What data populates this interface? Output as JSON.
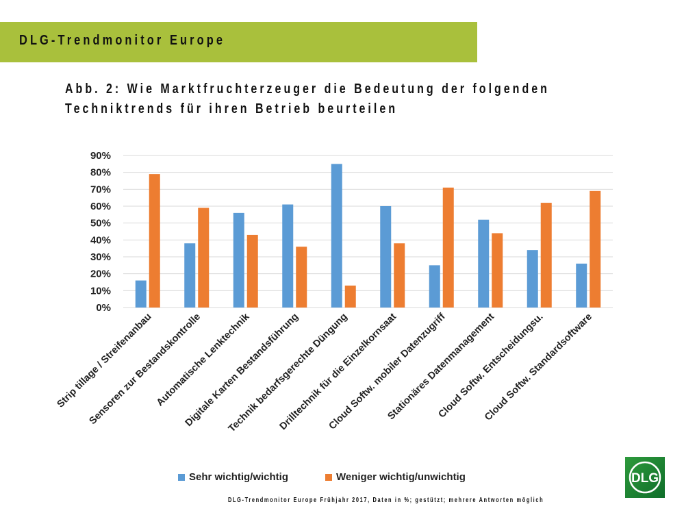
{
  "header": {
    "banner": "DLG-Trendmonitor Europe"
  },
  "title_lines": [
    "Abb. 2: Wie Marktfruchterzeuger die Bedeutung der folgenden",
    "Techniktrends für ihren Betrieb beurteilen"
  ],
  "footer": "DLG-Trendmonitor Europe Frühjahr 2017, Daten in %; gestützt; mehrere Antworten möglich",
  "logo": {
    "text": "DLG"
  },
  "colors": {
    "blue": "#5b9bd5",
    "orange": "#ed7d31",
    "banner": "#a9c03c"
  },
  "chart_data": {
    "type": "bar",
    "categories": [
      "Strip tillage / Streifenanbau",
      "Sensoren zur Bestandskontrolle",
      "Automatische Lenktechnik",
      "Digitale Karten Bestandsführung",
      "Technik bedarfsgerechte Düngung",
      "Drilltechnik für die Einzelkornsaat",
      "Cloud Softw. mobiler Datenzugriff",
      "Stationäres Datenmanagement",
      "Cloud Softw. Entscheidungsu.",
      "Cloud Softw. Standardsoftware"
    ],
    "series": [
      {
        "name": "Sehr wichtig/wichtig",
        "color": "#5b9bd5",
        "values": [
          16,
          38,
          56,
          61,
          85,
          60,
          25,
          52,
          34,
          26
        ]
      },
      {
        "name": "Weniger wichtig/unwichtig",
        "color": "#ed7d31",
        "values": [
          79,
          59,
          43,
          36,
          13,
          38,
          71,
          44,
          62,
          69
        ]
      }
    ],
    "yticks": [
      "0%",
      "10%",
      "20%",
      "30%",
      "40%",
      "50%",
      "60%",
      "70%",
      "80%",
      "90%"
    ],
    "ylim": [
      0,
      90
    ],
    "grid": true,
    "legend": "bottom"
  }
}
